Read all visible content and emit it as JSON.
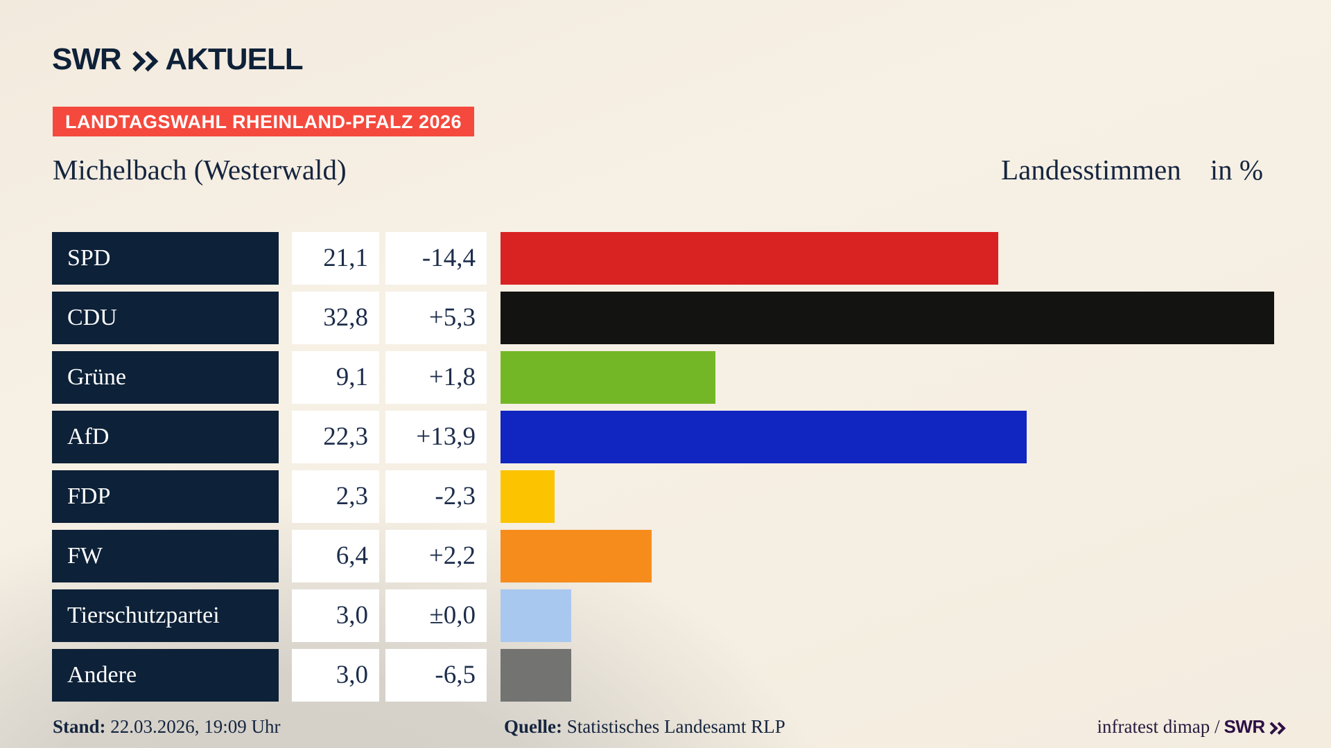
{
  "header": {
    "logo_main": "SWR",
    "logo_suffix": "AKTUELL",
    "banner": "LANDTAGSWAHL RHEINLAND-PFALZ 2026"
  },
  "title": {
    "left": "Michelbach (Westerwald)",
    "right": "Landesstimmen",
    "unit": "in %"
  },
  "chart_data": {
    "type": "bar",
    "orientation": "horizontal",
    "title": "Landesstimmen in %",
    "categories": [
      "SPD",
      "CDU",
      "Grüne",
      "AfD",
      "FDP",
      "FW",
      "Tierschutzpartei",
      "Andere"
    ],
    "values": [
      21.1,
      32.8,
      9.1,
      22.3,
      2.3,
      6.4,
      3.0,
      3.0
    ],
    "value_labels": [
      "21,1",
      "32,8",
      "9,1",
      "22,3",
      "2,3",
      "6,4",
      "3,0",
      "3,0"
    ],
    "diff_values": [
      -14.4,
      5.3,
      1.8,
      13.9,
      -2.3,
      2.2,
      0.0,
      -6.5
    ],
    "diff_labels": [
      "-14,4",
      "+5,3",
      "+1,8",
      "+13,9",
      "-2,3",
      "+2,2",
      "±0,0",
      "-6,5"
    ],
    "bar_colors": [
      "#d92222",
      "#131312",
      "#74b726",
      "#1125c1",
      "#fcc400",
      "#f68c1c",
      "#a9c8ef",
      "#737372"
    ],
    "xlim": [
      0,
      33
    ],
    "grid": false,
    "legend": false
  },
  "footer": {
    "stand_label": "Stand:",
    "stand_value": "22.03.2026, 19:09 Uhr",
    "quelle_label": "Quelle:",
    "quelle_value": "Statistisches Landesamt RLP",
    "credit": "infratest dimap /",
    "credit_brand": "SWR"
  },
  "colors": {
    "background_cream": "#f6efe4",
    "background_gray": "#d5d1c9",
    "banner_red": "#f5493d",
    "navy_text": "#15253f",
    "label_box_navy": "#0d2138",
    "value_box_white": "#ffffff",
    "brand_purple": "#2c1045"
  }
}
